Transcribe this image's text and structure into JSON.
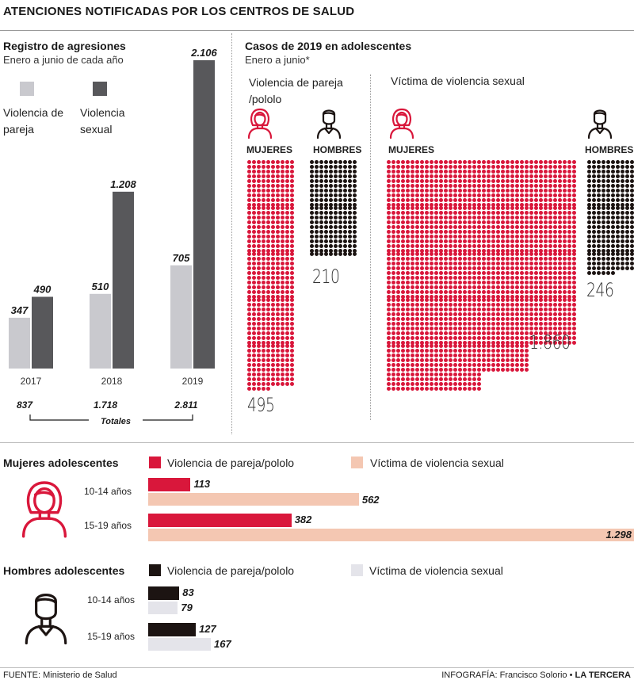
{
  "title": "ATENCIONES NOTIFICADAS POR LOS CENTROS DE SALUD",
  "colors": {
    "pareja_gray": "#c9c9ce",
    "sexual_dark": "#58585b",
    "red": "#d9173b",
    "peach": "#f4c7b2",
    "black": "#1c1412",
    "light_gray": "#e4e4ea"
  },
  "left": {
    "title": "Registro de agresiones",
    "subtitle": "Enero a junio de cada año",
    "legend_pareja": "Violencia de pareja",
    "legend_sexual": "Violencia sexual",
    "totals_label": "Totales"
  },
  "right": {
    "title": "Casos de 2019 en adolescentes",
    "subtitle": "Enero a junio*",
    "pareja_title": "Violencia de pareja /pololo",
    "sexual_title": "Víctima de violencia sexual",
    "mujeres": "MUJERES",
    "hombres": "HOMBRES",
    "n_mujeres_pareja": "495",
    "n_hombres_pareja": "210",
    "n_mujeres_sexual": "1.860",
    "n_hombres_sexual": "246"
  },
  "mujeres_section": {
    "title": "Mujeres adolescentes",
    "legend_pareja": "Violencia de pareja/pololo",
    "legend_sexual": "Víctima de violencia sexual",
    "age1": "10-14 años",
    "age2": "15-19 años",
    "v_pareja_1": "113",
    "v_sexual_1": "562",
    "v_pareja_2": "382",
    "v_sexual_2": "1.298"
  },
  "hombres_section": {
    "title": "Hombres adolescentes",
    "legend_pareja": "Violencia de pareja/pololo",
    "legend_sexual": "Víctima de violencia sexual",
    "age1": "10-14 años",
    "age2": "15-19 años",
    "v_pareja_1": "83",
    "v_sexual_1": "79",
    "v_pareja_2": "127",
    "v_sexual_2": "167"
  },
  "footer": {
    "source": "FUENTE: Ministerio de Salud",
    "credit": "INFOGRAFÍA: Francisco Solorio • ",
    "brand": "LA TERCERA"
  },
  "chart_data": [
    {
      "type": "bar",
      "title": "Registro de agresiones",
      "subtitle": "Enero a junio de cada año",
      "categories": [
        "2017",
        "2018",
        "2019"
      ],
      "category_labels": [
        "2017",
        "2018",
        "2019"
      ],
      "series": [
        {
          "name": "Violencia de pareja",
          "values": [
            347,
            510,
            705
          ],
          "labels": [
            "347",
            "510",
            "705"
          ]
        },
        {
          "name": "Violencia sexual",
          "values": [
            490,
            1208,
            2106
          ],
          "labels": [
            "490",
            "1.208",
            "2.106"
          ]
        }
      ],
      "totals": [
        837,
        1718,
        2811
      ],
      "total_labels": [
        "837",
        "1.718",
        "2.811"
      ],
      "ylim": [
        0,
        2106
      ],
      "legend": "top-left"
    },
    {
      "type": "table",
      "title": "Casos de 2019 en adolescentes",
      "subtitle": "Enero a junio*",
      "columns": [
        "Violencia de pareja /pololo",
        "Víctima de violencia sexual"
      ],
      "rows": [
        {
          "name": "MUJERES",
          "values": [
            495,
            1860
          ]
        },
        {
          "name": "HOMBRES",
          "values": [
            210,
            246
          ]
        }
      ]
    },
    {
      "type": "bar",
      "orientation": "horizontal",
      "title": "Mujeres adolescentes",
      "categories": [
        "10-14 años",
        "15-19 años"
      ],
      "series": [
        {
          "name": "Violencia de pareja/pololo",
          "values": [
            113,
            382
          ]
        },
        {
          "name": "Víctima de violencia sexual",
          "values": [
            562,
            1298
          ]
        }
      ],
      "xlim": [
        0,
        1298
      ]
    },
    {
      "type": "bar",
      "orientation": "horizontal",
      "title": "Hombres adolescentes",
      "categories": [
        "10-14 años",
        "15-19 años"
      ],
      "series": [
        {
          "name": "Violencia de pareja/pololo",
          "values": [
            83,
            127
          ]
        },
        {
          "name": "Víctima de violencia sexual",
          "values": [
            79,
            167
          ]
        }
      ],
      "xlim": [
        0,
        1298
      ]
    }
  ]
}
